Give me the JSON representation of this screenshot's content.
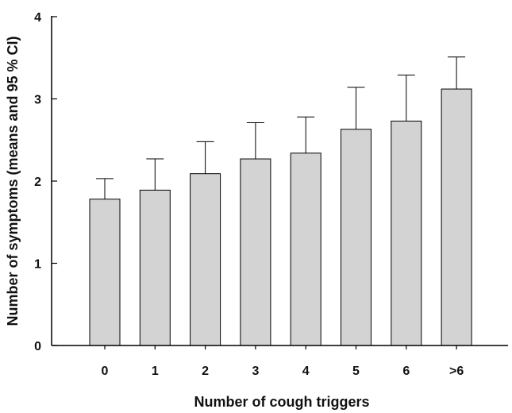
{
  "chart_data": {
    "type": "bar",
    "title": "",
    "xlabel": "Number of cough triggers",
    "ylabel": "Number of symptoms (means and 95 % CI)",
    "categories": [
      "0",
      "1",
      "2",
      "3",
      "4",
      "5",
      "6",
      ">6"
    ],
    "values": [
      1.78,
      1.89,
      2.09,
      2.27,
      2.34,
      2.63,
      2.73,
      3.12
    ],
    "ci_upper": [
      2.03,
      2.27,
      2.48,
      2.71,
      2.78,
      3.14,
      3.29,
      3.51
    ],
    "ylim": [
      0,
      4
    ],
    "yticks": [
      "0",
      "1",
      "2",
      "3",
      "4"
    ],
    "grid": false,
    "colors": {
      "bar_fill": "#d3d3d3",
      "bar_stroke": "#000000",
      "axis": "#000000"
    }
  }
}
